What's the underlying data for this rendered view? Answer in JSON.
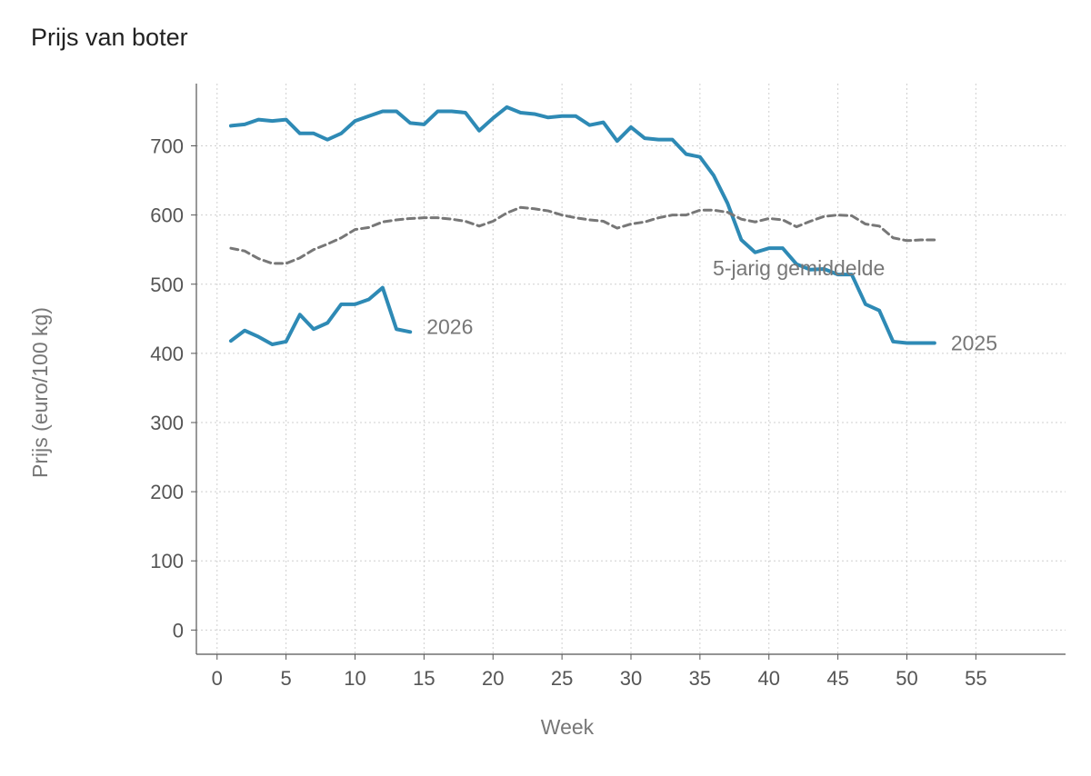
{
  "chart_data": {
    "type": "line",
    "title": "Prijs van boter",
    "xlabel": "Week",
    "ylabel": "Prijs (euro/100 kg)",
    "xlim": [
      -1.5,
      61.5
    ],
    "ylim": [
      -35,
      790
    ],
    "xticks": [
      0,
      5,
      10,
      15,
      20,
      25,
      30,
      35,
      40,
      45,
      50,
      55
    ],
    "yticks": [
      0,
      100,
      200,
      300,
      400,
      500,
      600,
      700
    ],
    "grid": true,
    "legend": "none",
    "series": [
      {
        "name": "2025",
        "color": "#2e8ab5",
        "style": "solid",
        "x": [
          1,
          2,
          3,
          4,
          5,
          6,
          7,
          8,
          9,
          10,
          11,
          12,
          13,
          14,
          15,
          16,
          17,
          18,
          19,
          20,
          21,
          22,
          23,
          24,
          25,
          26,
          27,
          28,
          29,
          30,
          31,
          32,
          33,
          34,
          35,
          36,
          37,
          38,
          39,
          40,
          41,
          42,
          43,
          44,
          45,
          46,
          47,
          48,
          49,
          50,
          51,
          52
        ],
        "values": [
          729,
          731,
          738,
          736,
          738,
          718,
          718,
          709,
          718,
          736,
          743,
          750,
          750,
          733,
          731,
          750,
          750,
          748,
          722,
          740,
          756,
          748,
          746,
          741,
          743,
          743,
          730,
          734,
          707,
          727,
          711,
          709,
          709,
          688,
          684,
          657,
          617,
          564,
          546,
          552,
          552,
          529,
          521,
          522,
          514,
          514,
          471,
          462,
          417,
          415,
          415,
          415
        ]
      },
      {
        "name": "2026",
        "color": "#2e8ab5",
        "style": "solid",
        "x": [
          1,
          2,
          3,
          4,
          5,
          6,
          7,
          8,
          9,
          10,
          11,
          12,
          13,
          14
        ],
        "values": [
          418,
          433,
          424,
          413,
          417,
          456,
          435,
          444,
          471,
          471,
          478,
          495,
          435,
          431
        ]
      },
      {
        "name": "5-jarig gemiddelde",
        "color": "#777777",
        "style": "dashed",
        "x": [
          1,
          2,
          3,
          4,
          5,
          6,
          7,
          8,
          9,
          10,
          11,
          12,
          13,
          14,
          15,
          16,
          17,
          18,
          19,
          20,
          21,
          22,
          23,
          24,
          25,
          26,
          27,
          28,
          29,
          30,
          31,
          32,
          33,
          34,
          35,
          36,
          37,
          38,
          39,
          40,
          41,
          42,
          43,
          44,
          45,
          46,
          47,
          48,
          49,
          50,
          51,
          52
        ],
        "values": [
          552,
          548,
          537,
          530,
          530,
          538,
          550,
          558,
          567,
          579,
          582,
          590,
          593,
          595,
          596,
          596,
          594,
          591,
          584,
          591,
          603,
          611,
          609,
          606,
          600,
          596,
          593,
          591,
          581,
          587,
          590,
          596,
          600,
          600,
          607,
          607,
          604,
          594,
          590,
          595,
          593,
          583,
          591,
          598,
          600,
          599,
          587,
          584,
          567,
          563,
          564,
          564
        ]
      }
    ]
  }
}
